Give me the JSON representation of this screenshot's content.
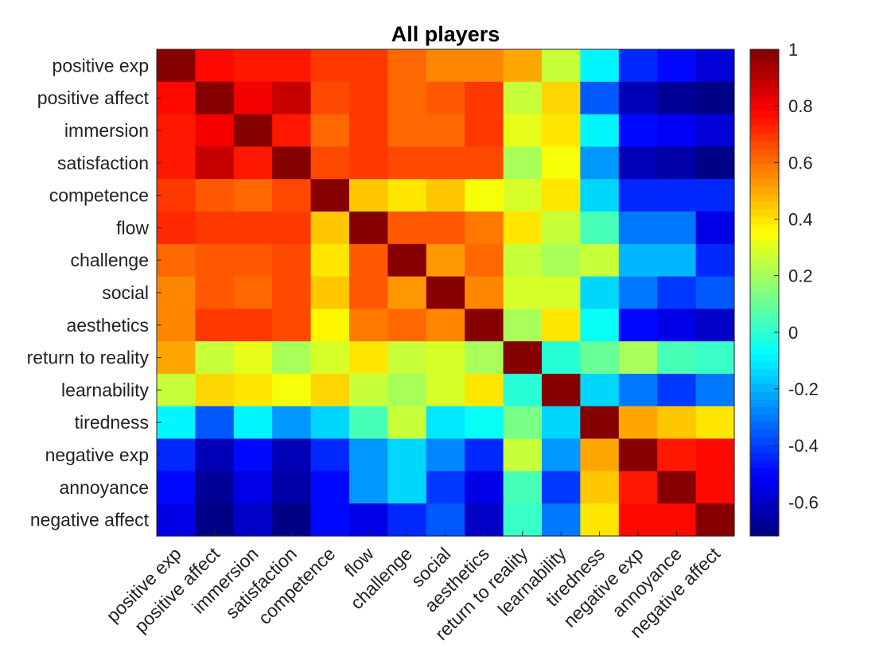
{
  "chart_data": {
    "type": "heatmap",
    "title": "All players",
    "labels": [
      "positive exp",
      "positive affect",
      "immersion",
      "satisfaction",
      "competence",
      "flow",
      "challenge",
      "social",
      "aesthetics",
      "return to reality",
      "learnability",
      "tiredness",
      "negative exp",
      "annoyance",
      "negative affect"
    ],
    "values": [
      [
        1.0,
        0.78,
        0.75,
        0.75,
        0.7,
        0.7,
        0.6,
        0.55,
        0.55,
        0.5,
        0.25,
        -0.1,
        -0.45,
        -0.5,
        -0.58
      ],
      [
        0.78,
        1.0,
        0.8,
        0.88,
        0.67,
        0.7,
        0.62,
        0.65,
        0.7,
        0.25,
        0.42,
        -0.35,
        -0.62,
        -0.68,
        -0.72
      ],
      [
        0.75,
        0.8,
        1.0,
        0.75,
        0.62,
        0.7,
        0.62,
        0.6,
        0.7,
        0.32,
        0.4,
        -0.1,
        -0.5,
        -0.52,
        -0.58
      ],
      [
        0.75,
        0.88,
        0.75,
        1.0,
        0.67,
        0.7,
        0.66,
        0.66,
        0.66,
        0.2,
        0.34,
        -0.25,
        -0.62,
        -0.66,
        -0.72
      ],
      [
        0.7,
        0.65,
        0.62,
        0.67,
        1.0,
        0.45,
        0.4,
        0.45,
        0.35,
        0.3,
        0.4,
        -0.15,
        -0.45,
        -0.45,
        -0.45
      ],
      [
        0.72,
        0.7,
        0.7,
        0.7,
        0.45,
        1.0,
        0.65,
        0.65,
        0.58,
        0.4,
        0.25,
        0.05,
        -0.3,
        -0.3,
        -0.55
      ],
      [
        0.6,
        0.64,
        0.64,
        0.66,
        0.4,
        0.65,
        1.0,
        0.52,
        0.62,
        0.25,
        0.22,
        0.25,
        -0.2,
        -0.2,
        -0.45
      ],
      [
        0.55,
        0.65,
        0.6,
        0.66,
        0.45,
        0.65,
        0.52,
        1.0,
        0.55,
        0.28,
        0.3,
        -0.15,
        -0.3,
        -0.4,
        -0.35
      ],
      [
        0.55,
        0.68,
        0.68,
        0.66,
        0.38,
        0.58,
        0.62,
        0.55,
        1.0,
        0.2,
        0.4,
        -0.05,
        -0.5,
        -0.55,
        -0.6
      ],
      [
        0.5,
        0.25,
        0.32,
        0.2,
        0.3,
        0.4,
        0.25,
        0.28,
        0.2,
        1.0,
        0.0,
        0.1,
        0.2,
        0.05,
        0.02
      ],
      [
        0.25,
        0.42,
        0.4,
        0.35,
        0.42,
        0.25,
        0.22,
        0.3,
        0.4,
        0.0,
        1.0,
        -0.15,
        -0.3,
        -0.4,
        -0.3
      ],
      [
        -0.1,
        -0.35,
        -0.08,
        -0.25,
        -0.15,
        0.05,
        0.25,
        -0.12,
        -0.05,
        0.12,
        -0.15,
        1.0,
        0.5,
        0.45,
        0.4
      ],
      [
        -0.45,
        -0.62,
        -0.5,
        -0.62,
        -0.45,
        -0.25,
        -0.15,
        -0.28,
        -0.45,
        0.25,
        -0.25,
        0.5,
        1.0,
        0.75,
        0.78
      ],
      [
        -0.5,
        -0.68,
        -0.55,
        -0.65,
        -0.5,
        -0.25,
        -0.15,
        -0.4,
        -0.55,
        0.05,
        -0.4,
        0.45,
        0.75,
        1.0,
        0.78
      ],
      [
        -0.55,
        -0.72,
        -0.6,
        -0.72,
        -0.5,
        -0.55,
        -0.45,
        -0.35,
        -0.6,
        0.02,
        -0.3,
        0.4,
        0.78,
        0.78,
        1.0
      ]
    ],
    "colorbar": {
      "colormap": "jet",
      "range": [
        -0.72,
        1.0
      ],
      "ticks": [
        1,
        0.8,
        0.6,
        0.4,
        0.2,
        0,
        -0.2,
        -0.4,
        -0.6
      ],
      "tick_labels": [
        "1",
        "0.8",
        "0.6",
        "0.4",
        "0.2",
        "0",
        "-0.2",
        "-0.4",
        "-0.6"
      ]
    },
    "grid": false
  }
}
